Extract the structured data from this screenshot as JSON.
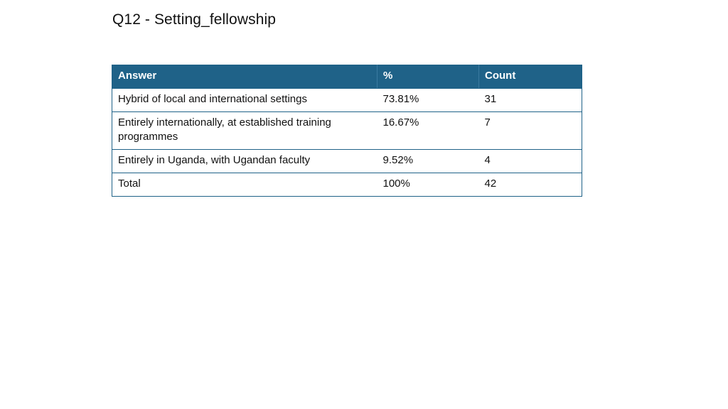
{
  "title": "Q12 - Setting_fellowship",
  "colors": {
    "header_bg": "#1f6288",
    "header_text": "#ffffff",
    "border": "#1f6288"
  },
  "table": {
    "headers": [
      "Answer",
      "%",
      "Count"
    ],
    "rows": [
      [
        "Hybrid of local and international settings",
        "73.81%",
        "31"
      ],
      [
        "Entirely internationally, at established training programmes",
        "16.67%",
        "7"
      ],
      [
        "Entirely in Uganda, with Ugandan faculty",
        "9.52%",
        "4"
      ],
      [
        "Total",
        "100%",
        "42"
      ]
    ]
  }
}
